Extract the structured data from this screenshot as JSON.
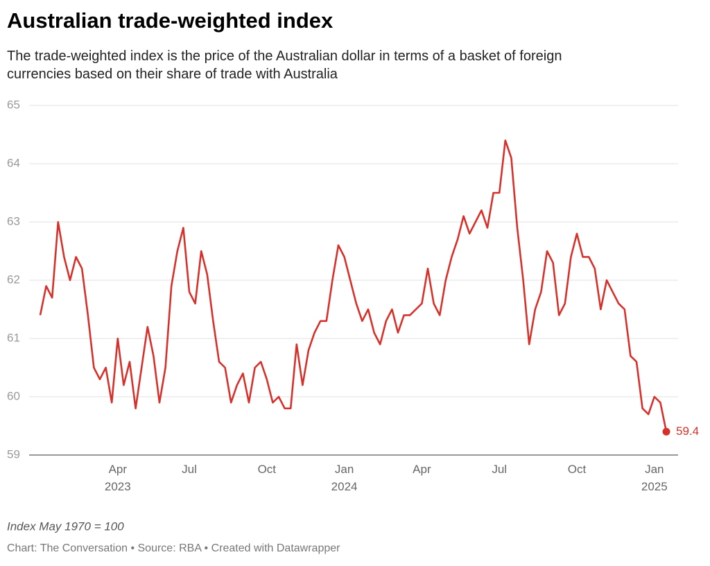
{
  "chart_data": {
    "type": "line",
    "title": "Australian trade-weighted index",
    "subtitle": "The trade-weighted index is the price of the Australian dollar in terms of a basket of foreign currencies based on their share of trade with Australia",
    "note": "Index May 1970 = 100",
    "source": "Chart: The Conversation • Source: RBA • Created with Datawrapper",
    "categories": [
      null,
      null,
      null,
      null,
      null,
      null,
      null,
      null,
      null,
      null,
      null,
      null,
      null,
      "Apr 2023",
      null,
      null,
      null,
      null,
      null,
      null,
      null,
      null,
      null,
      null,
      null,
      "Jul",
      null,
      null,
      null,
      null,
      null,
      null,
      null,
      null,
      null,
      null,
      null,
      null,
      "Oct",
      null,
      null,
      null,
      null,
      null,
      null,
      null,
      null,
      null,
      null,
      null,
      null,
      "Jan 2024",
      null,
      null,
      null,
      null,
      null,
      null,
      null,
      null,
      null,
      null,
      null,
      null,
      "Apr",
      null,
      null,
      null,
      null,
      null,
      null,
      null,
      null,
      null,
      null,
      null,
      null,
      "Jul",
      null,
      null,
      null,
      null,
      null,
      null,
      null,
      null,
      null,
      null,
      null,
      null,
      "Oct",
      null,
      null,
      null,
      null,
      null,
      null,
      null,
      null,
      null,
      null,
      null,
      null,
      "Jan 2025",
      null,
      null
    ],
    "series": [
      {
        "name": "Trade-weighted index",
        "color": "#d7302a",
        "values": [
          61.4,
          61.9,
          61.7,
          63.0,
          62.4,
          62.0,
          62.4,
          62.2,
          61.4,
          60.5,
          60.3,
          60.5,
          59.9,
          61.0,
          60.2,
          60.6,
          59.8,
          60.5,
          61.2,
          60.7,
          59.9,
          60.5,
          61.9,
          62.5,
          62.9,
          61.8,
          61.6,
          62.5,
          62.1,
          61.3,
          60.6,
          60.5,
          59.9,
          60.2,
          60.4,
          59.9,
          60.5,
          60.6,
          60.3,
          59.9,
          60.0,
          59.8,
          59.8,
          60.9,
          60.2,
          60.8,
          61.1,
          61.3,
          61.3,
          62.0,
          62.6,
          62.4,
          62.0,
          61.6,
          61.3,
          61.5,
          61.1,
          60.9,
          61.3,
          61.5,
          61.1,
          61.4,
          61.4,
          61.5,
          61.6,
          62.2,
          61.6,
          61.4,
          62.0,
          62.4,
          62.7,
          63.1,
          62.8,
          63.0,
          63.2,
          62.9,
          63.5,
          63.5,
          64.4,
          64.1,
          62.9,
          62.0,
          60.9,
          61.5,
          61.8,
          62.5,
          62.3,
          61.4,
          61.6,
          62.4,
          62.8,
          62.4,
          62.4,
          62.2,
          61.5,
          62.0,
          61.8,
          61.6,
          61.5,
          60.7,
          60.6,
          59.8,
          59.7,
          60.0,
          59.9,
          59.4
        ]
      }
    ],
    "ylim": [
      59,
      65
    ],
    "yticks": [
      59,
      60,
      61,
      62,
      63,
      64,
      65
    ],
    "grid": true
  }
}
